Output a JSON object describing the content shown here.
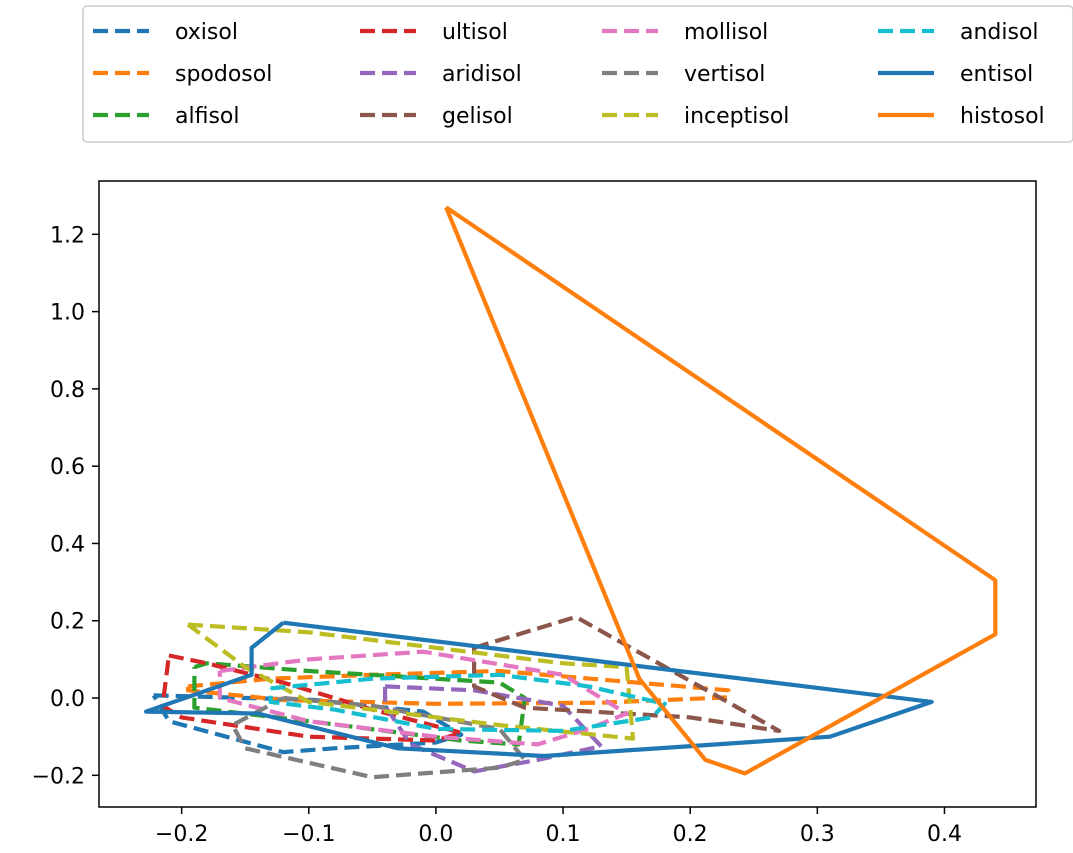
{
  "chart_data": {
    "type": "line",
    "title": "",
    "xlabel": "",
    "ylabel": "",
    "xlim": [
      -0.265,
      0.472
    ],
    "ylim": [
      -0.282,
      1.338
    ],
    "xticks": [
      -0.2,
      -0.1,
      0.0,
      0.1,
      0.2,
      0.3,
      0.4
    ],
    "xtick_labels": [
      "−0.2",
      "−0.1",
      "0.0",
      "0.1",
      "0.2",
      "0.3",
      "0.4"
    ],
    "yticks": [
      -0.2,
      0.0,
      0.2,
      0.4,
      0.6,
      0.8,
      1.0,
      1.2
    ],
    "ytick_labels": [
      "−0.2",
      "0.0",
      "0.2",
      "0.4",
      "0.6",
      "0.8",
      "1.0",
      "1.2"
    ],
    "grid": false,
    "legend_placement": "top, outside plot, 4 columns",
    "series": [
      {
        "name": "oxisol",
        "color": "#1f77b4",
        "style": "dashed",
        "points": [
          [
            -0.222,
            0.007
          ],
          [
            -0.095,
            -0.005
          ],
          [
            -0.01,
            -0.035
          ],
          [
            0.02,
            -0.095
          ],
          [
            0.0,
            -0.115
          ],
          [
            -0.08,
            -0.13
          ],
          [
            -0.12,
            -0.14
          ],
          [
            -0.21,
            -0.06
          ],
          [
            -0.222,
            0.007
          ]
        ]
      },
      {
        "name": "spodosol",
        "color": "#ff7f0e",
        "style": "dashed",
        "points": [
          [
            -0.195,
            0.03
          ],
          [
            -0.13,
            0.05
          ],
          [
            -0.05,
            0.06
          ],
          [
            0.05,
            0.07
          ],
          [
            0.23,
            0.02
          ],
          [
            0.23,
            0.002
          ],
          [
            0.13,
            -0.012
          ],
          [
            0.0,
            -0.015
          ],
          [
            -0.12,
            -0.005
          ],
          [
            -0.195,
            0.02
          ],
          [
            -0.195,
            0.03
          ]
        ]
      },
      {
        "name": "alfisol",
        "color": "#2ca02c",
        "style": "dashed",
        "points": [
          [
            -0.19,
            0.08
          ],
          [
            -0.18,
            0.09
          ],
          [
            -0.1,
            0.07
          ],
          [
            0.05,
            0.04
          ],
          [
            0.07,
            0.0
          ],
          [
            0.065,
            -0.12
          ],
          [
            0.02,
            -0.11
          ],
          [
            -0.1,
            -0.06
          ],
          [
            -0.19,
            -0.025
          ],
          [
            -0.19,
            0.08
          ]
        ]
      },
      {
        "name": "ultisol",
        "color": "#d62728",
        "style": "dashed",
        "points": [
          [
            -0.21,
            0.11
          ],
          [
            -0.18,
            0.09
          ],
          [
            -0.12,
            0.04
          ],
          [
            -0.05,
            -0.03
          ],
          [
            0.02,
            -0.09
          ],
          [
            0.0,
            -0.11
          ],
          [
            -0.1,
            -0.1
          ],
          [
            -0.2,
            -0.05
          ],
          [
            -0.215,
            -0.02
          ],
          [
            -0.21,
            0.11
          ]
        ]
      },
      {
        "name": "aridisol",
        "color": "#9467bd",
        "style": "dashed",
        "points": [
          [
            -0.04,
            0.03
          ],
          [
            0.03,
            0.02
          ],
          [
            0.1,
            -0.02
          ],
          [
            0.13,
            -0.125
          ],
          [
            0.08,
            -0.16
          ],
          [
            0.03,
            -0.19
          ],
          [
            -0.02,
            -0.12
          ],
          [
            -0.04,
            -0.02
          ],
          [
            -0.04,
            0.03
          ]
        ]
      },
      {
        "name": "gelisol",
        "color": "#8c564b",
        "style": "dashed",
        "points": [
          [
            0.03,
            0.13
          ],
          [
            0.11,
            0.21
          ],
          [
            0.27,
            -0.085
          ],
          [
            0.2,
            -0.05
          ],
          [
            0.07,
            -0.025
          ],
          [
            0.03,
            0.03
          ],
          [
            0.03,
            0.13
          ]
        ]
      },
      {
        "name": "mollisol",
        "color": "#e377c2",
        "style": "dashed",
        "points": [
          [
            -0.17,
            0.07
          ],
          [
            -0.1,
            0.1
          ],
          [
            -0.01,
            0.12
          ],
          [
            0.1,
            0.06
          ],
          [
            0.15,
            -0.04
          ],
          [
            0.12,
            -0.08
          ],
          [
            0.08,
            -0.12
          ],
          [
            0.0,
            -0.1
          ],
          [
            -0.1,
            -0.06
          ],
          [
            -0.17,
            0.0
          ],
          [
            -0.17,
            0.07
          ]
        ]
      },
      {
        "name": "vertisol",
        "color": "#7f7f7f",
        "style": "dashed",
        "points": [
          [
            -0.12,
            0.0
          ],
          [
            -0.05,
            -0.02
          ],
          [
            0.05,
            -0.08
          ],
          [
            0.07,
            -0.16
          ],
          [
            0.05,
            -0.18
          ],
          [
            -0.05,
            -0.205
          ],
          [
            -0.15,
            -0.13
          ],
          [
            -0.16,
            -0.07
          ],
          [
            -0.12,
            0.0
          ]
        ]
      },
      {
        "name": "inceptisol",
        "color": "#bcbd22",
        "style": "dashed",
        "points": [
          [
            -0.195,
            0.19
          ],
          [
            -0.1,
            0.17
          ],
          [
            0.1,
            0.09
          ],
          [
            0.15,
            0.08
          ],
          [
            0.155,
            -0.105
          ],
          [
            0.05,
            -0.07
          ],
          [
            -0.1,
            -0.01
          ],
          [
            -0.15,
            0.08
          ],
          [
            -0.195,
            0.19
          ]
        ]
      },
      {
        "name": "andisol",
        "color": "#17becf",
        "style": "dashed",
        "points": [
          [
            -0.13,
            0.025
          ],
          [
            -0.05,
            0.05
          ],
          [
            0.05,
            0.06
          ],
          [
            0.12,
            0.03
          ],
          [
            0.18,
            -0.015
          ],
          [
            0.17,
            -0.05
          ],
          [
            0.1,
            -0.085
          ],
          [
            0.0,
            -0.08
          ],
          [
            -0.08,
            -0.03
          ],
          [
            -0.13,
            -0.01
          ],
          [
            -0.13,
            0.025
          ]
        ]
      },
      {
        "name": "entisol",
        "color": "#1f77b4",
        "style": "solid",
        "points": [
          [
            -0.12,
            0.195
          ],
          [
            0.39,
            -0.01
          ],
          [
            0.31,
            -0.1
          ],
          [
            0.085,
            -0.15
          ],
          [
            -0.03,
            -0.13
          ],
          [
            -0.14,
            -0.04
          ],
          [
            -0.228,
            -0.035
          ],
          [
            -0.215,
            -0.02
          ],
          [
            -0.145,
            0.06
          ],
          [
            -0.145,
            0.13
          ],
          [
            -0.12,
            0.195
          ]
        ]
      },
      {
        "name": "histosol",
        "color": "#ff7f0e",
        "style": "solid",
        "points": [
          [
            0.008,
            1.27
          ],
          [
            0.44,
            0.305
          ],
          [
            0.44,
            0.165
          ],
          [
            0.243,
            -0.195
          ],
          [
            0.212,
            -0.16
          ],
          [
            0.16,
            0.05
          ],
          [
            0.008,
            1.27
          ]
        ]
      }
    ]
  }
}
